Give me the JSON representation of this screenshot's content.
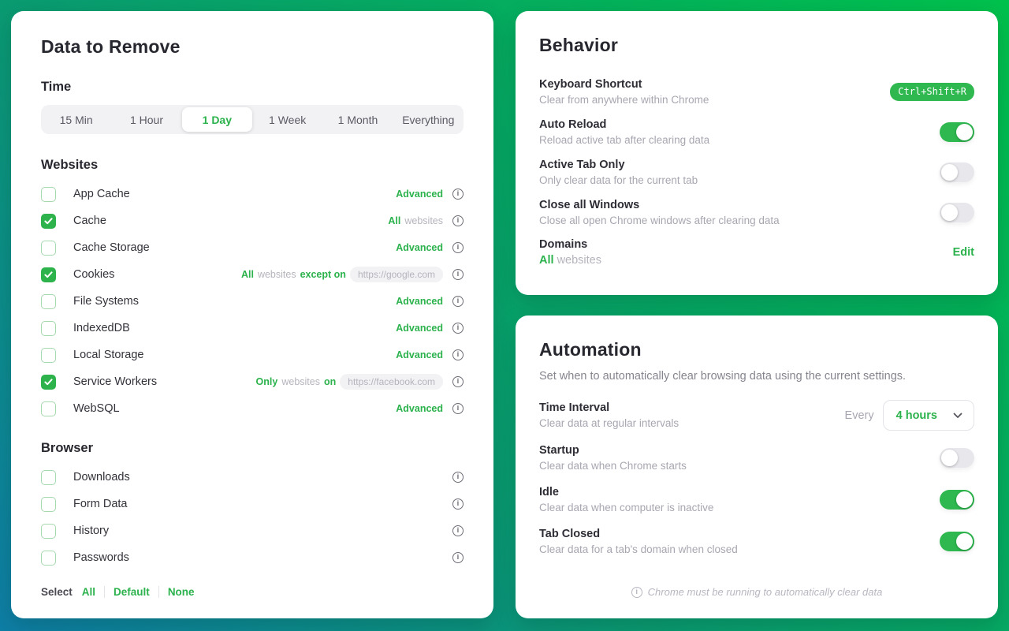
{
  "icons": {
    "info_glyph": "i"
  },
  "theme": {
    "accent_green": "#2bb24c",
    "gradient_top_right": "#00c14c",
    "gradient_bottom_left": "#0e7ea6"
  },
  "data_card": {
    "title": "Data to Remove",
    "time": {
      "heading": "Time",
      "options": [
        "15 Min",
        "1 Hour",
        "1 Day",
        "1 Week",
        "1 Month",
        "Everything"
      ],
      "selected": "1 Day"
    },
    "websites": {
      "heading": "Websites",
      "rows": [
        {
          "label": "App Cache",
          "checked": false,
          "status": [
            {
              "text": "Advanced",
              "style": "green"
            }
          ]
        },
        {
          "label": "Cache",
          "checked": true,
          "status": [
            {
              "text": "All",
              "style": "green"
            },
            {
              "text": "websites",
              "style": "gray"
            }
          ]
        },
        {
          "label": "Cache Storage",
          "checked": false,
          "status": [
            {
              "text": "Advanced",
              "style": "green"
            }
          ]
        },
        {
          "label": "Cookies",
          "checked": true,
          "status": [
            {
              "text": "All",
              "style": "green"
            },
            {
              "text": "websites",
              "style": "gray"
            },
            {
              "text": "except on",
              "style": "green"
            },
            {
              "text": "https://google.com",
              "style": "pill"
            }
          ]
        },
        {
          "label": "File Systems",
          "checked": false,
          "status": [
            {
              "text": "Advanced",
              "style": "green"
            }
          ]
        },
        {
          "label": "IndexedDB",
          "checked": false,
          "status": [
            {
              "text": "Advanced",
              "style": "green"
            }
          ]
        },
        {
          "label": "Local Storage",
          "checked": false,
          "status": [
            {
              "text": "Advanced",
              "style": "green"
            }
          ]
        },
        {
          "label": "Service Workers",
          "checked": true,
          "status": [
            {
              "text": "Only",
              "style": "green"
            },
            {
              "text": "websites",
              "style": "gray"
            },
            {
              "text": "on",
              "style": "green"
            },
            {
              "text": "https://facebook.com",
              "style": "pill"
            }
          ]
        },
        {
          "label": "WebSQL",
          "checked": false,
          "status": [
            {
              "text": "Advanced",
              "style": "green"
            }
          ]
        }
      ]
    },
    "browser": {
      "heading": "Browser",
      "rows": [
        {
          "label": "Downloads",
          "checked": false,
          "status": []
        },
        {
          "label": "Form Data",
          "checked": false,
          "status": []
        },
        {
          "label": "History",
          "checked": false,
          "status": []
        },
        {
          "label": "Passwords",
          "checked": false,
          "status": []
        }
      ]
    },
    "select": {
      "label": "Select",
      "actions": [
        "All",
        "Default",
        "None"
      ]
    }
  },
  "behavior_card": {
    "title": "Behavior",
    "rows": [
      {
        "label": "Keyboard Shortcut",
        "description": "Clear from anywhere within Chrome",
        "shortcut": "Ctrl+Shift+R"
      },
      {
        "label": "Auto Reload",
        "description": "Reload active tab after clearing data",
        "toggle": true
      },
      {
        "label": "Active Tab Only",
        "description": "Only clear data for the current tab",
        "toggle": false
      },
      {
        "label": "Close all Windows",
        "description": "Close all open Chrome windows after clearing data",
        "toggle": false
      },
      {
        "label": "Domains",
        "value_parts": [
          {
            "text": "All",
            "style": "green"
          },
          {
            "text": "websites",
            "style": "gray"
          }
        ],
        "action": "Edit"
      }
    ]
  },
  "automation_card": {
    "title": "Automation",
    "subtitle": "Set when to automatically clear browsing data using the current settings.",
    "rows": [
      {
        "label": "Time Interval",
        "description": "Clear data at regular intervals",
        "prefix": "Every",
        "select_value": "4 hours"
      },
      {
        "label": "Startup",
        "description": "Clear data when Chrome starts",
        "toggle": false
      },
      {
        "label": "Idle",
        "description": "Clear data when computer is inactive",
        "toggle": true
      },
      {
        "label": "Tab Closed",
        "description": "Clear data for a tab's domain when closed",
        "toggle": true
      }
    ],
    "footnote": "Chrome must be running to automatically clear data"
  }
}
